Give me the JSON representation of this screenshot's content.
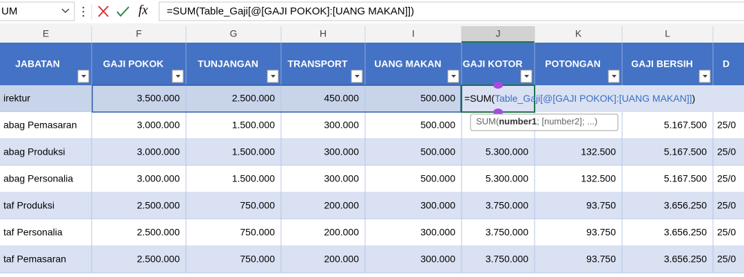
{
  "name_box": "UM",
  "formula_bar": {
    "fx": "fx",
    "formula": "=SUM(Table_Gaji[@[GAJI POKOK]:[UANG MAKAN]])"
  },
  "column_letters": [
    "E",
    "F",
    "G",
    "H",
    "I",
    "J",
    "K",
    "L"
  ],
  "table": {
    "headers": [
      "JABATAN",
      "GAJI POKOK",
      "TUNJANGAN",
      "TRANSPORT",
      "UANG MAKAN",
      "GAJI KOTOR",
      "POTONGAN",
      "GAJI BERSIH",
      "D"
    ],
    "rows": [
      [
        "irektur",
        "3.500.000",
        "2.500.000",
        "450.000",
        "500.000",
        null,
        null,
        null,
        null
      ],
      [
        "abag Pemasaran",
        "3.000.000",
        "1.500.000",
        "300.000",
        "500.000",
        null,
        null,
        "5.167.500",
        "25/0"
      ],
      [
        "abag Produksi",
        "3.000.000",
        "1.500.000",
        "300.000",
        "500.000",
        "5.300.000",
        "132.500",
        "5.167.500",
        "25/0"
      ],
      [
        "abag Personalia",
        "3.000.000",
        "1.500.000",
        "300.000",
        "500.000",
        "5.300.000",
        "132.500",
        "5.167.500",
        "25/0"
      ],
      [
        "taf Produksi",
        "2.500.000",
        "750.000",
        "200.000",
        "300.000",
        "3.750.000",
        "93.750",
        "3.656.250",
        "25/0"
      ],
      [
        "taf Personalia",
        "2.500.000",
        "750.000",
        "200.000",
        "300.000",
        "3.750.000",
        "93.750",
        "3.656.250",
        "25/0"
      ],
      [
        "taf Pemasaran",
        "2.500.000",
        "750.000",
        "200.000",
        "300.000",
        "3.750.000",
        "93.750",
        "3.656.250",
        "25/0"
      ]
    ]
  },
  "cell_edit": {
    "prefix": "=SUM(",
    "reference": "Table_Gaji[@[GAJI POKOK]:[UANG MAKAN]]",
    "suffix": ")"
  },
  "tooltip": {
    "function": "SUM(",
    "current_arg": "number1",
    "rest": "; [number2]; ...)"
  }
}
